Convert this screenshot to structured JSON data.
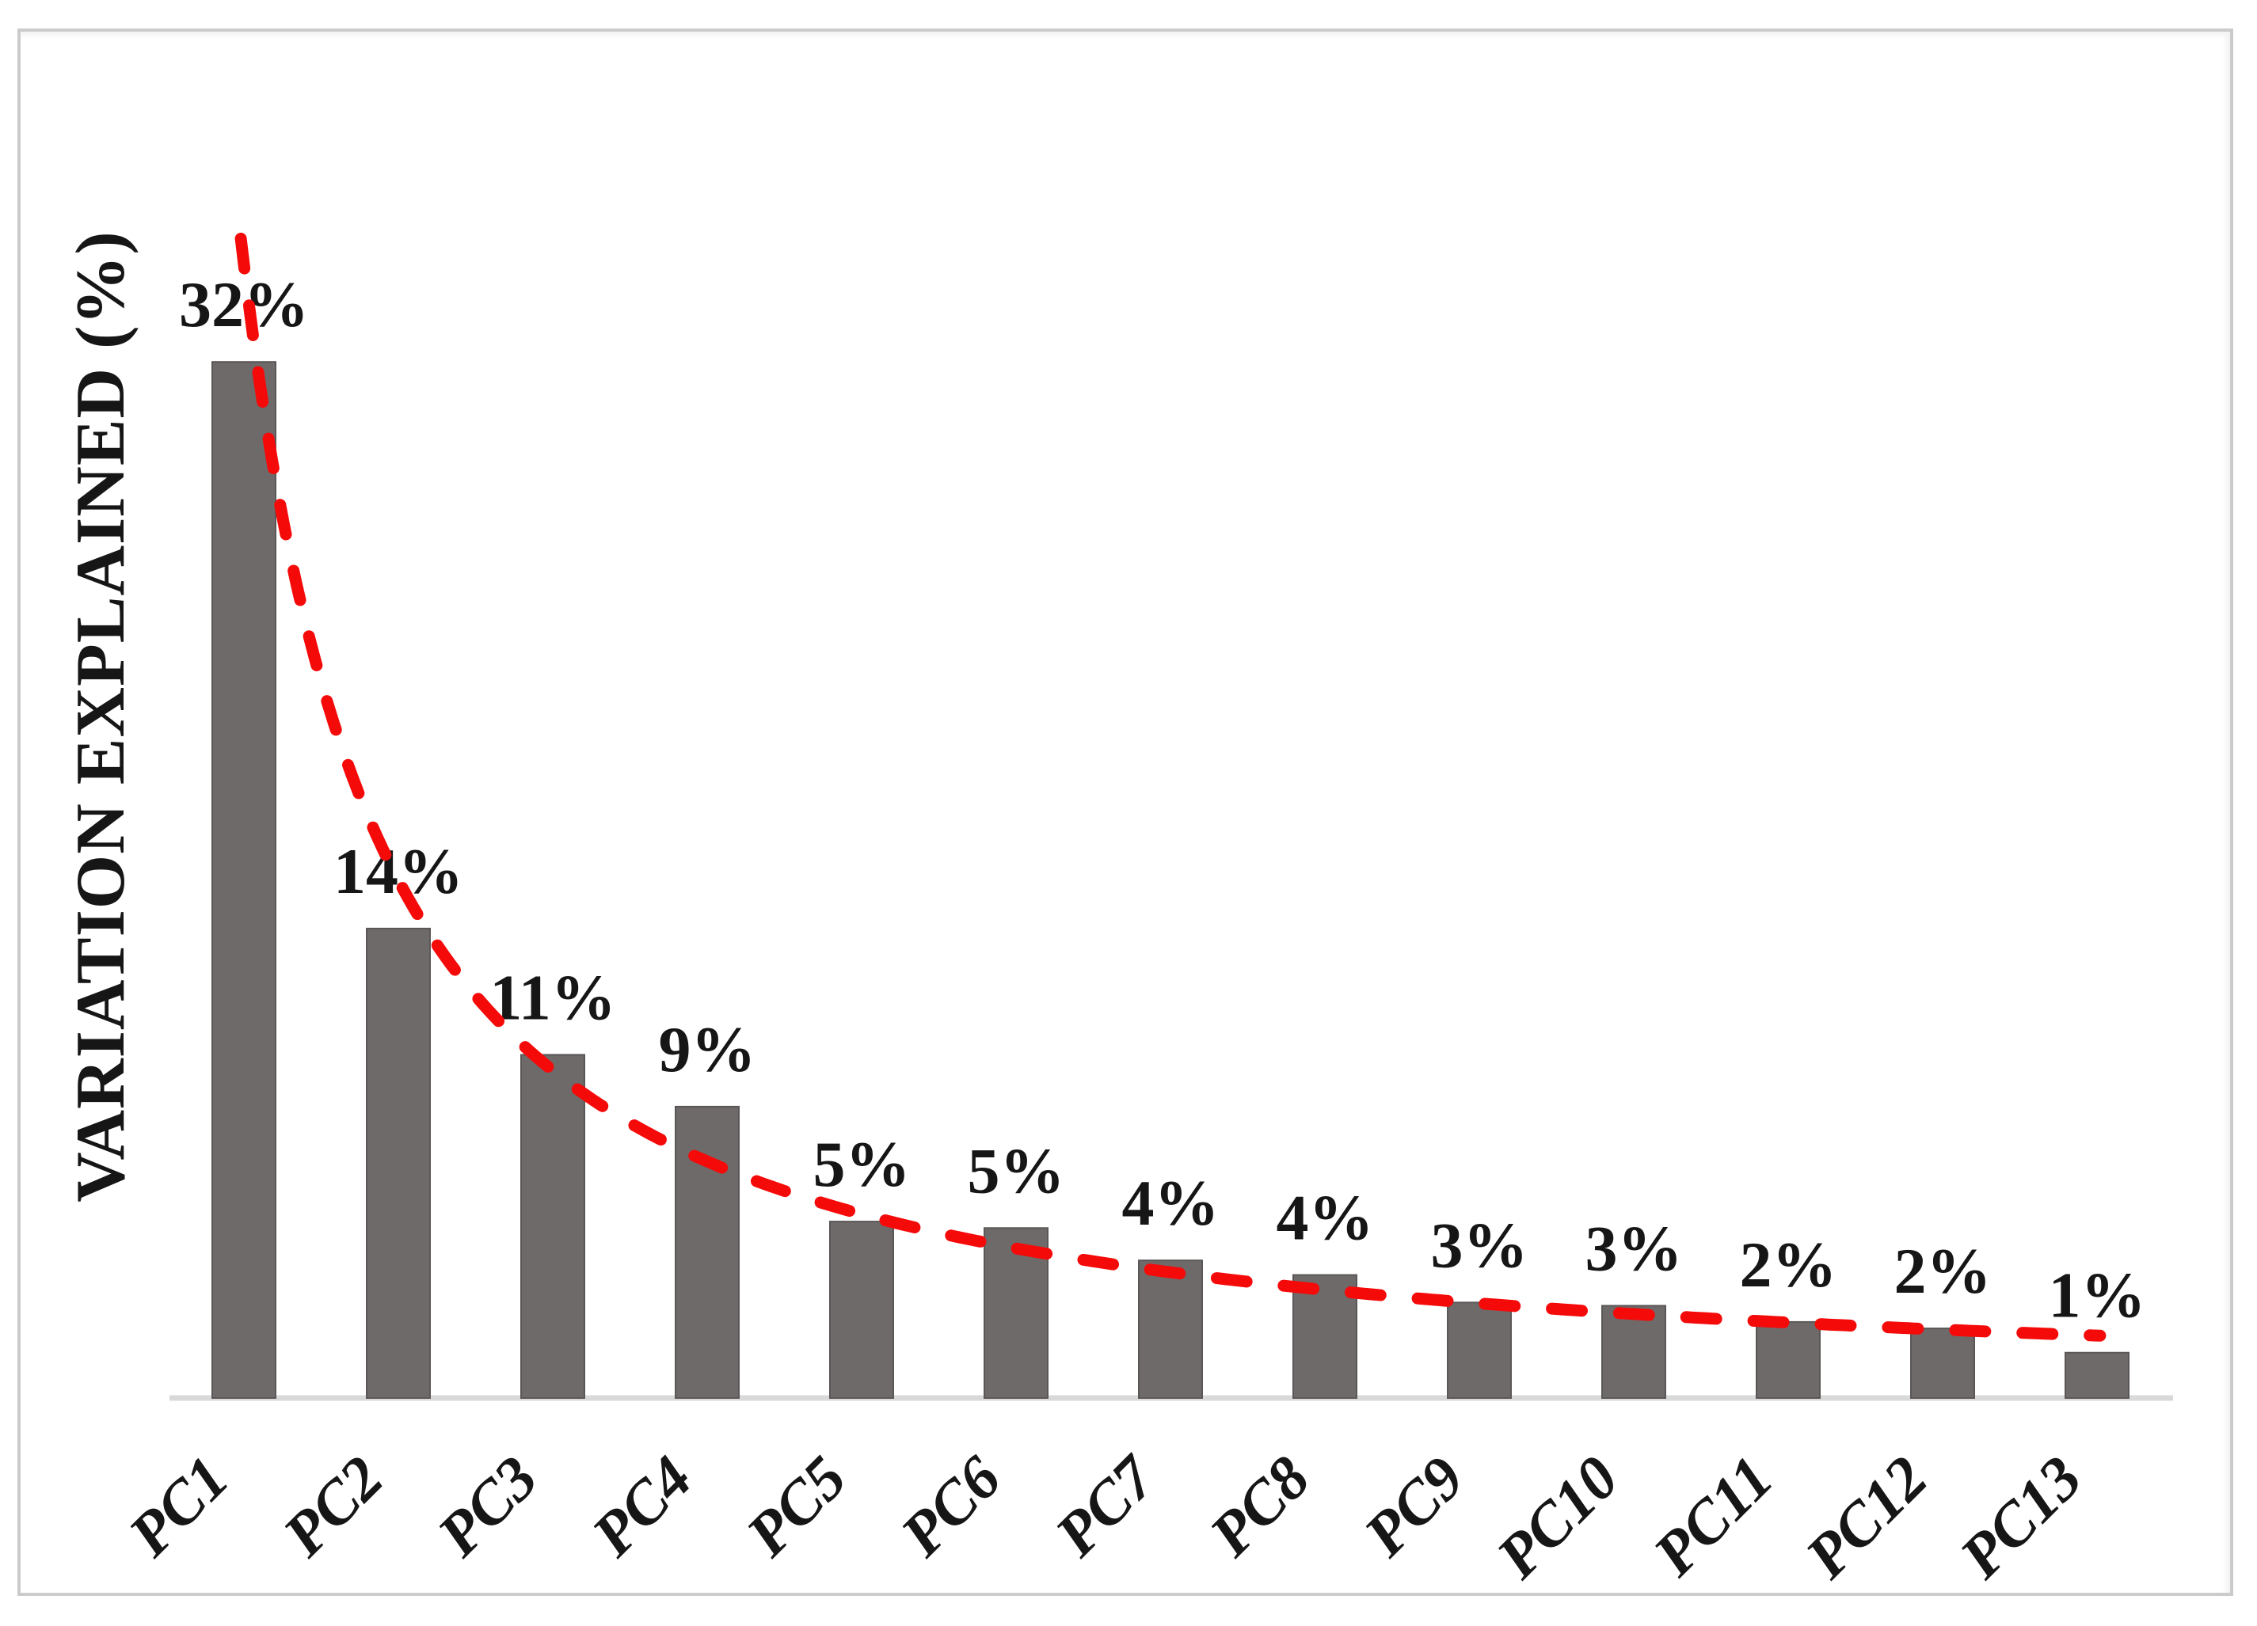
{
  "chart_data": {
    "type": "bar",
    "title": "",
    "xlabel": "",
    "ylabel": "VARIATION EXPLAINED (%)",
    "categories": [
      "PC1",
      "PC2",
      "PC3",
      "PC4",
      "PC5",
      "PC6",
      "PC7",
      "PC8",
      "PC9",
      "PC10",
      "PC11",
      "PC12",
      "PC13"
    ],
    "values": [
      32,
      14,
      11,
      9,
      5,
      5,
      4,
      4,
      3,
      3,
      2,
      2,
      1
    ],
    "value_labels": [
      "32%",
      "14%",
      "11%",
      "9%",
      "5%",
      "5%",
      "4%",
      "4%",
      "3%",
      "3%",
      "2%",
      "2%",
      "1%"
    ],
    "values_precise": [
      32.0,
      14.5,
      10.6,
      9.0,
      5.45,
      5.25,
      4.25,
      3.8,
      2.95,
      2.85,
      2.35,
      2.15,
      1.4
    ],
    "unit": "%",
    "ylim": [
      0,
      36
    ],
    "y_axis_ticks": "hidden",
    "grid": false,
    "legend": "none",
    "bar_color": "#6e6a6a",
    "bar_edge_color": "#5b5757",
    "axis_color": "#d9d9d9",
    "text_color": "#161616",
    "trendline": {
      "type": "power",
      "style": "dashed",
      "color": "#f50a0a",
      "equation_pct": "y = 35 * x^-1.13",
      "a": 35,
      "b": -1.13,
      "t_start": 0.98,
      "t_end": 13.02
    }
  }
}
